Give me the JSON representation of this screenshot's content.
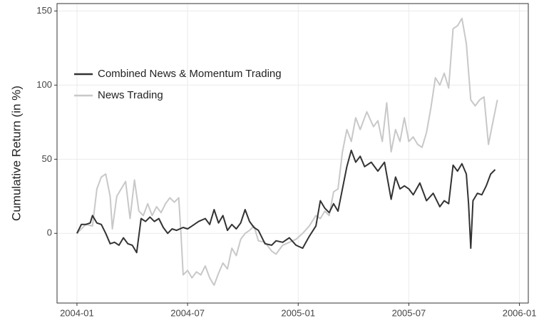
{
  "chart_data": {
    "type": "line",
    "ylabel": "Cumulative Return (in %)",
    "xlim": [
      2003.91,
      2006.04
    ],
    "xticks": [
      {
        "value": 2004.0,
        "label": "2004-01"
      },
      {
        "value": 2004.5,
        "label": "2004-07"
      },
      {
        "value": 2005.0,
        "label": "2005-01"
      },
      {
        "value": 2005.5,
        "label": "2005-07"
      },
      {
        "value": 2006.0,
        "label": "2006-01"
      }
    ],
    "ylim": [
      -47,
      155
    ],
    "yticks": [
      0,
      50,
      100,
      150
    ],
    "grid": true,
    "legend": "top-left",
    "series": [
      {
        "name": "Combined News & Momentum Trading",
        "color": "#333333",
        "x": [
          2004.0,
          2004.02,
          2004.04,
          2004.06,
          2004.07,
          2004.09,
          2004.11,
          2004.13,
          2004.15,
          2004.17,
          2004.19,
          2004.21,
          2004.23,
          2004.25,
          2004.27,
          2004.29,
          2004.31,
          2004.33,
          2004.35,
          2004.37,
          2004.39,
          2004.41,
          2004.43,
          2004.45,
          2004.48,
          2004.5,
          2004.52,
          2004.55,
          2004.58,
          2004.6,
          2004.62,
          2004.64,
          2004.66,
          2004.68,
          2004.7,
          2004.72,
          2004.74,
          2004.76,
          2004.78,
          2004.8,
          2004.82,
          2004.85,
          2004.88,
          2004.9,
          2004.93,
          2004.96,
          2004.99,
          2005.02,
          2005.05,
          2005.08,
          2005.1,
          2005.12,
          2005.14,
          2005.16,
          2005.18,
          2005.2,
          2005.22,
          2005.24,
          2005.26,
          2005.28,
          2005.3,
          2005.33,
          2005.36,
          2005.39,
          2005.42,
          2005.44,
          2005.46,
          2005.48,
          2005.5,
          2005.52,
          2005.55,
          2005.58,
          2005.61,
          2005.64,
          2005.66,
          2005.68,
          2005.7,
          2005.72,
          2005.74,
          2005.76,
          2005.77,
          2005.78,
          2005.79,
          2005.81,
          2005.83,
          2005.85,
          2005.87,
          2005.89
        ],
        "values": [
          0,
          6,
          6,
          7,
          12,
          7,
          6,
          0,
          -7,
          -6,
          -8,
          -3,
          -7,
          -8,
          -13,
          10,
          8,
          11,
          8,
          10,
          4,
          0,
          3,
          2,
          4,
          3,
          5,
          8,
          10,
          6,
          16,
          7,
          12,
          2,
          6,
          3,
          7,
          16,
          8,
          4,
          2,
          -7,
          -8,
          -5,
          -6,
          -3,
          -8,
          -10,
          -2,
          5,
          22,
          17,
          14,
          20,
          15,
          30,
          45,
          56,
          48,
          52,
          45,
          48,
          42,
          48,
          23,
          38,
          30,
          32,
          30,
          26,
          34,
          22,
          27,
          18,
          22,
          20,
          46,
          42,
          47,
          40,
          20,
          -10,
          22,
          27,
          26,
          32,
          40,
          43
        ]
      },
      {
        "name": "News Trading",
        "color": "#c8c8c8",
        "x": [
          2004.0,
          2004.04,
          2004.07,
          2004.09,
          2004.11,
          2004.13,
          2004.15,
          2004.16,
          2004.18,
          2004.2,
          2004.22,
          2004.24,
          2004.26,
          2004.28,
          2004.3,
          2004.32,
          2004.34,
          2004.36,
          2004.38,
          2004.4,
          2004.42,
          2004.44,
          2004.46,
          2004.47,
          2004.48,
          2004.5,
          2004.52,
          2004.54,
          2004.56,
          2004.58,
          2004.6,
          2004.62,
          2004.64,
          2004.66,
          2004.68,
          2004.7,
          2004.72,
          2004.74,
          2004.76,
          2004.78,
          2004.8,
          2004.82,
          2004.85,
          2004.88,
          2004.9,
          2004.93,
          2004.96,
          2004.99,
          2005.02,
          2005.05,
          2005.08,
          2005.1,
          2005.12,
          2005.14,
          2005.16,
          2005.18,
          2005.2,
          2005.22,
          2005.24,
          2005.26,
          2005.28,
          2005.31,
          2005.34,
          2005.36,
          2005.38,
          2005.4,
          2005.42,
          2005.44,
          2005.46,
          2005.48,
          2005.5,
          2005.52,
          2005.54,
          2005.56,
          2005.58,
          2005.6,
          2005.62,
          2005.64,
          2005.66,
          2005.68,
          2005.7,
          2005.72,
          2005.74,
          2005.76,
          2005.78,
          2005.8,
          2005.82,
          2005.84,
          2005.86,
          2005.88,
          2005.9
        ],
        "values": [
          0,
          6,
          5,
          30,
          38,
          40,
          25,
          3,
          25,
          30,
          35,
          10,
          36,
          15,
          12,
          20,
          12,
          18,
          14,
          20,
          24,
          21,
          24,
          0,
          -28,
          -25,
          -30,
          -26,
          -28,
          -22,
          -30,
          -35,
          -27,
          -20,
          -24,
          -10,
          -15,
          -4,
          0,
          2,
          5,
          -5,
          -6,
          -12,
          -14,
          -8,
          -6,
          -4,
          0,
          5,
          12,
          10,
          15,
          12,
          28,
          30,
          55,
          70,
          62,
          78,
          70,
          82,
          72,
          76,
          62,
          88,
          55,
          70,
          62,
          78,
          62,
          65,
          60,
          58,
          68,
          85,
          105,
          100,
          108,
          98,
          138,
          140,
          145,
          128,
          90,
          86,
          90,
          92,
          60,
          75,
          90
        ]
      }
    ]
  }
}
